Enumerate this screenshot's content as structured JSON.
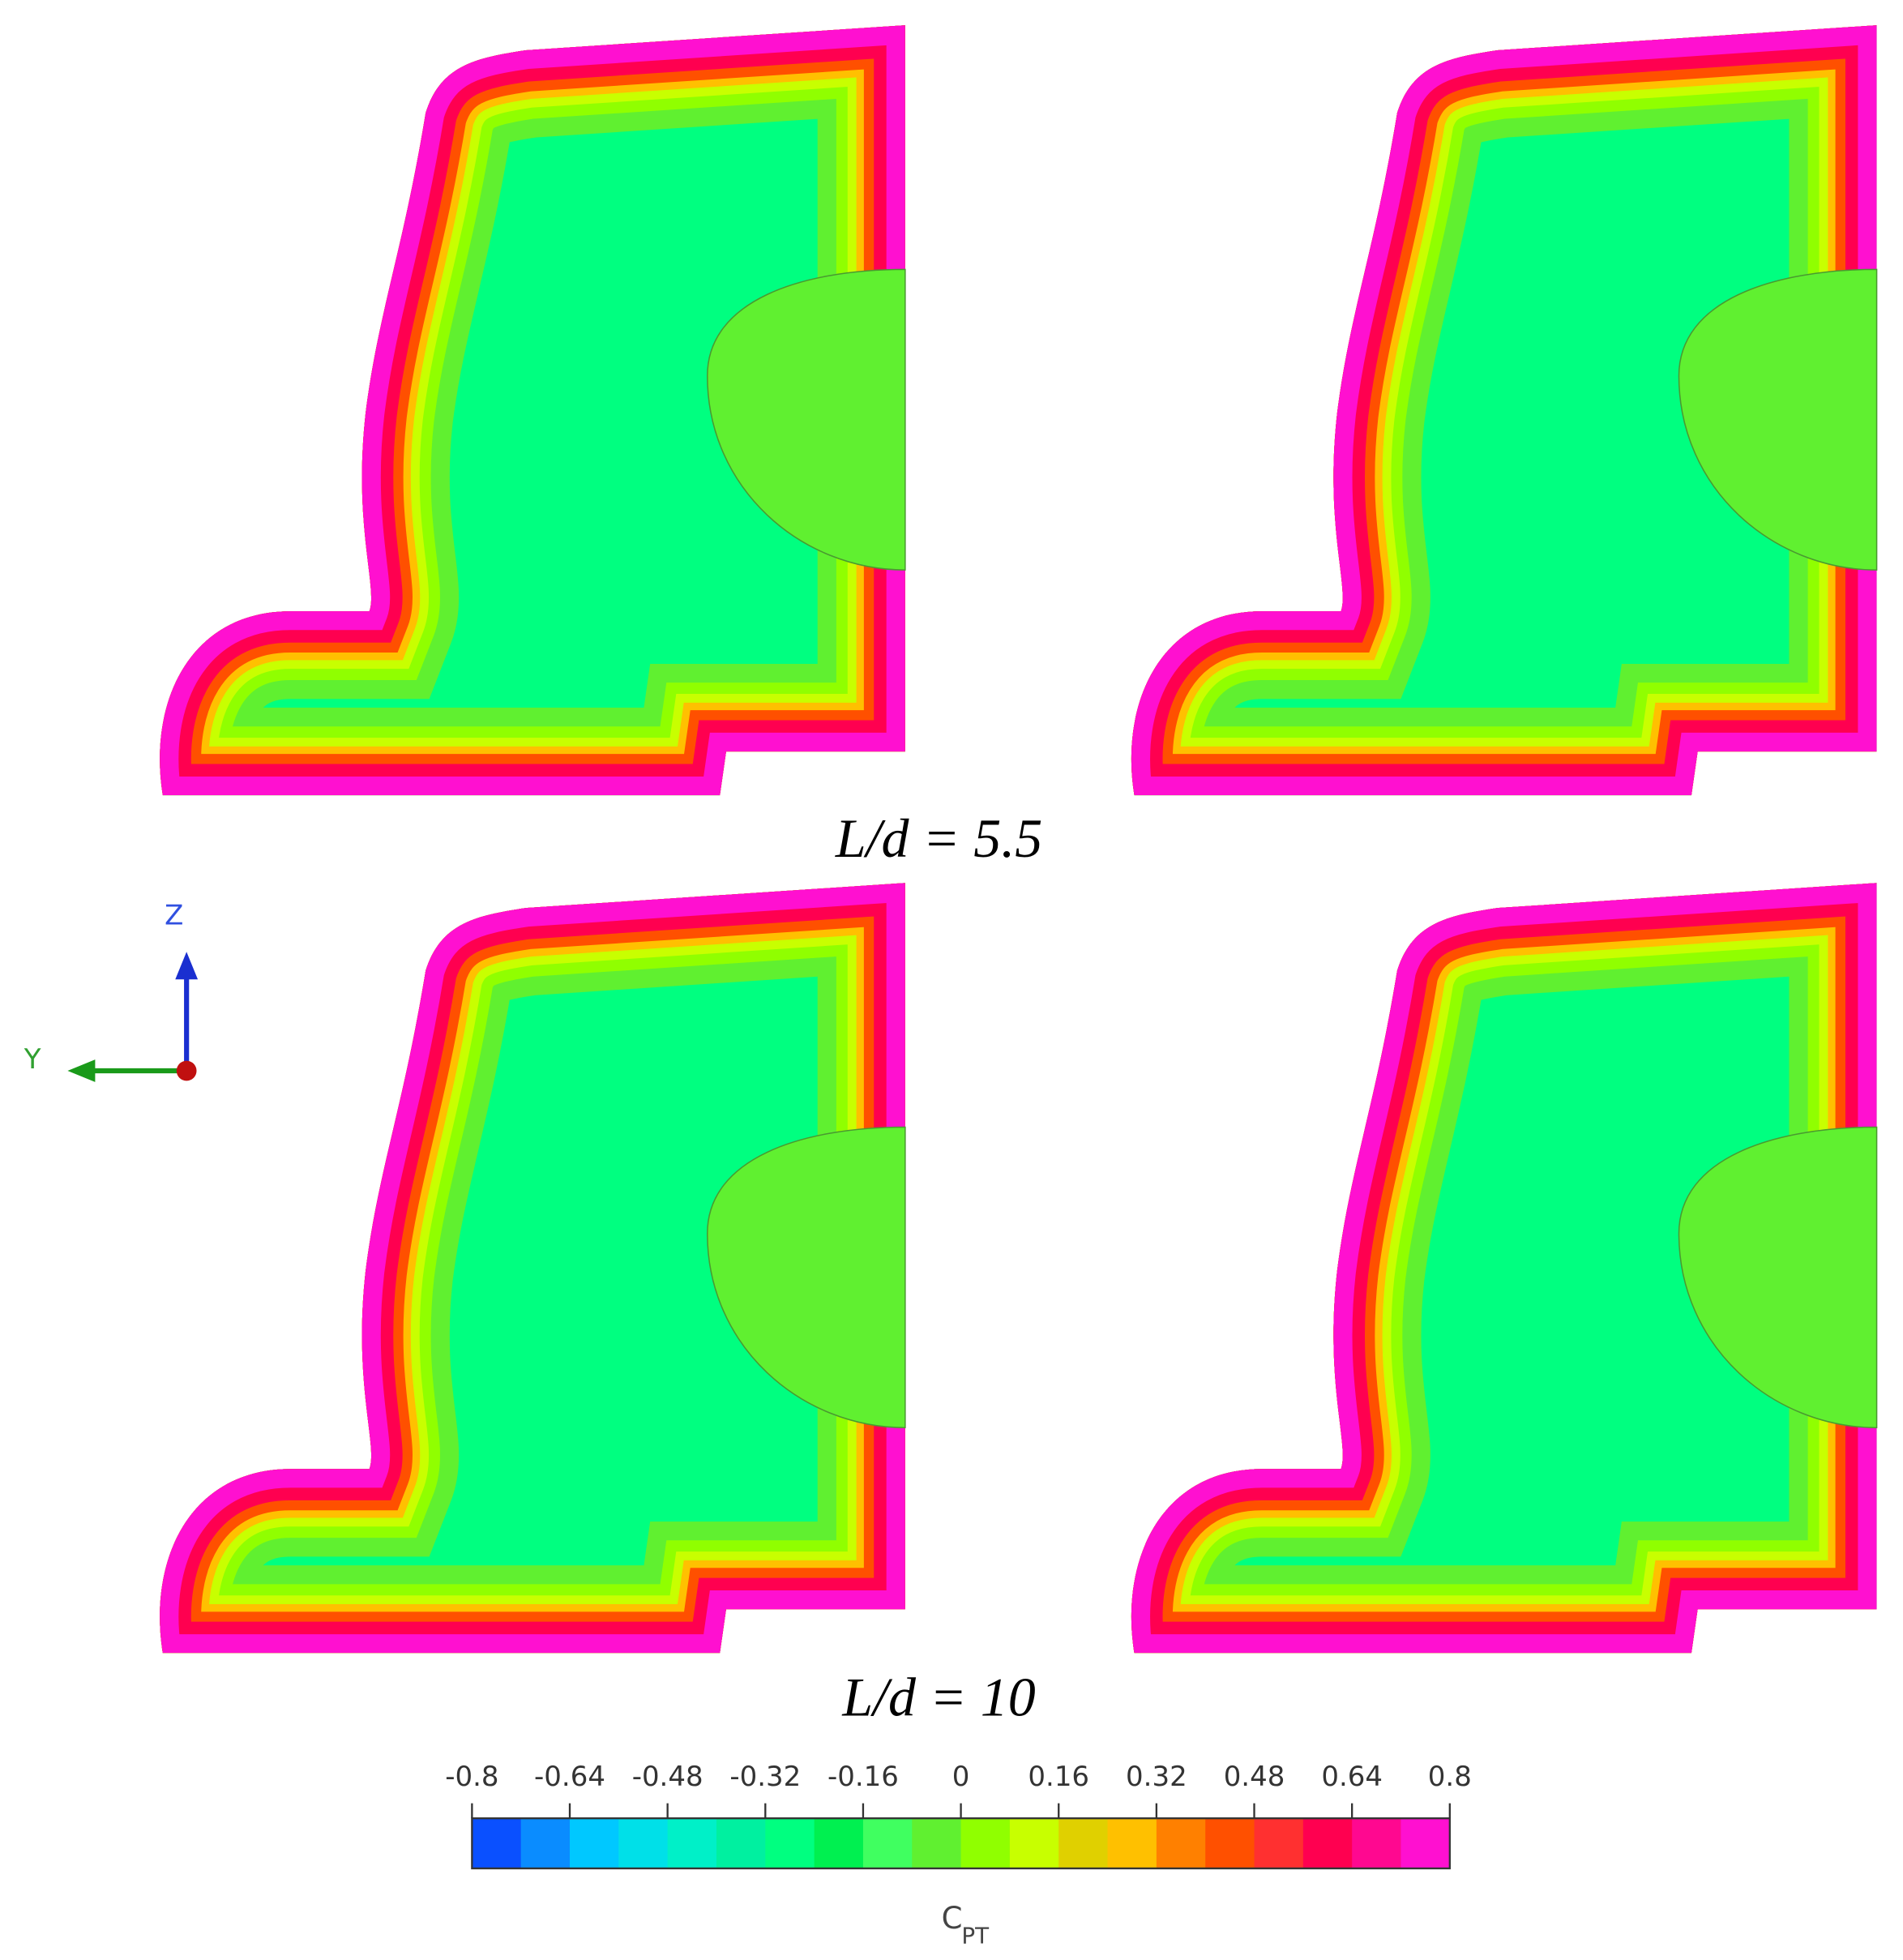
{
  "labels": {
    "top": "L/d = 5.5",
    "bottom": "L/d = 10"
  },
  "axes_triad": {
    "z": "Z",
    "y": "Y"
  },
  "colorbar": {
    "label": "C",
    "label_sub": "PT",
    "lim": [
      -0.8,
      0.8
    ],
    "ticks": [
      -0.8,
      -0.64,
      -0.48,
      -0.32,
      -0.16,
      0,
      0.16,
      0.32,
      0.48,
      0.64,
      0.8
    ],
    "colors": [
      "#0a50ff",
      "#0a8cff",
      "#00c8ff",
      "#00e0e8",
      "#00f0c8",
      "#00f0a0",
      "#00ff80",
      "#00f050",
      "#40ff60",
      "#60f030",
      "#90ff00",
      "#c8ff00",
      "#e0d000",
      "#ffc000",
      "#ff8000",
      "#ff5000",
      "#ff3030",
      "#ff0050",
      "#ff0890",
      "#ff10d0"
    ]
  }
}
